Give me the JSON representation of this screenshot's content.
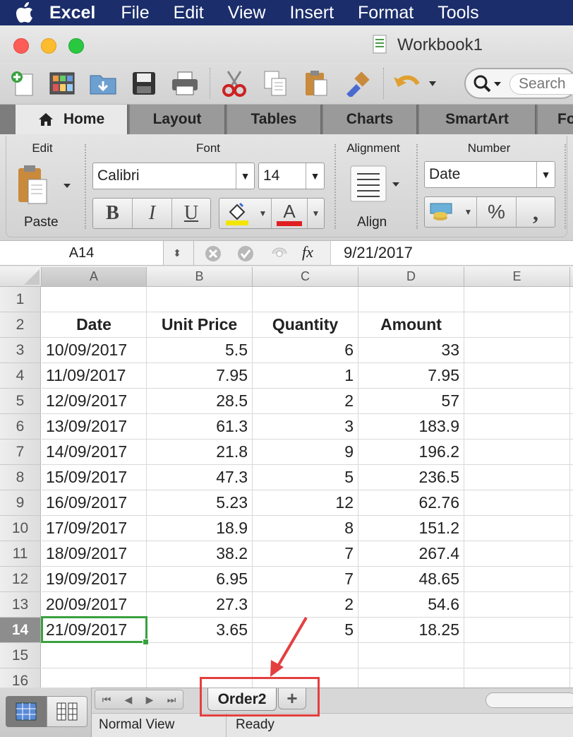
{
  "menubar": {
    "app": "Excel",
    "items": [
      "File",
      "Edit",
      "View",
      "Insert",
      "Format",
      "Tools"
    ]
  },
  "window": {
    "title": "Workbook1"
  },
  "toolbar": {
    "search_placeholder": "Search"
  },
  "ribbon": {
    "tabs": [
      "Home",
      "Layout",
      "Tables",
      "Charts",
      "SmartArt",
      "Fo"
    ],
    "groups": {
      "edit": "Edit",
      "font": "Font",
      "alignment": "Alignment",
      "number": "Number"
    },
    "paste_label": "Paste",
    "font_name": "Calibri",
    "font_size": "14",
    "bold": "B",
    "italic": "I",
    "underline": "U",
    "font_color_glyph": "A",
    "align_label": "Align",
    "number_format": "Date",
    "percent": "%",
    "comma": ",",
    "highlight_color": "#f2e600",
    "font_color": "#e02020"
  },
  "formula_bar": {
    "name_box": "A14",
    "fx": "fx",
    "value": "9/21/2017"
  },
  "sheet": {
    "columns": [
      "A",
      "B",
      "C",
      "D",
      "E"
    ],
    "selected_cell": "A14",
    "rows": [
      {
        "n": "1",
        "cells": [
          "",
          "",
          "",
          ""
        ]
      },
      {
        "n": "2",
        "cells": [
          "Date",
          "Unit Price",
          "Quantity",
          "Amount"
        ]
      },
      {
        "n": "3",
        "cells": [
          "10/09/2017",
          "5.5",
          "6",
          "33"
        ]
      },
      {
        "n": "4",
        "cells": [
          "11/09/2017",
          "7.95",
          "1",
          "7.95"
        ]
      },
      {
        "n": "5",
        "cells": [
          "12/09/2017",
          "28.5",
          "2",
          "57"
        ]
      },
      {
        "n": "6",
        "cells": [
          "13/09/2017",
          "61.3",
          "3",
          "183.9"
        ]
      },
      {
        "n": "7",
        "cells": [
          "14/09/2017",
          "21.8",
          "9",
          "196.2"
        ]
      },
      {
        "n": "8",
        "cells": [
          "15/09/2017",
          "47.3",
          "5",
          "236.5"
        ]
      },
      {
        "n": "9",
        "cells": [
          "16/09/2017",
          "5.23",
          "12",
          "62.76"
        ]
      },
      {
        "n": "10",
        "cells": [
          "17/09/2017",
          "18.9",
          "8",
          "151.2"
        ]
      },
      {
        "n": "11",
        "cells": [
          "18/09/2017",
          "38.2",
          "7",
          "267.4"
        ]
      },
      {
        "n": "12",
        "cells": [
          "19/09/2017",
          "6.95",
          "7",
          "48.65"
        ]
      },
      {
        "n": "13",
        "cells": [
          "20/09/2017",
          "27.3",
          "2",
          "54.6"
        ]
      },
      {
        "n": "14",
        "cells": [
          "21/09/2017",
          "3.65",
          "5",
          "18.25"
        ]
      },
      {
        "n": "15",
        "cells": [
          "",
          "",
          "",
          ""
        ]
      },
      {
        "n": "16",
        "cells": [
          "",
          "",
          "",
          ""
        ]
      }
    ]
  },
  "sheet_tabs": {
    "active": "Order2",
    "add": "+"
  },
  "status": {
    "view": "Normal View",
    "state": "Ready"
  },
  "annotation": {
    "color": "#e43f3f"
  }
}
